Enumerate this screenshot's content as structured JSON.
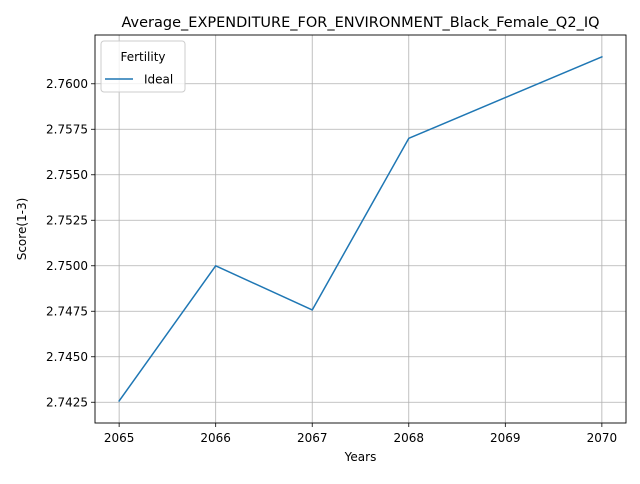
{
  "chart_data": {
    "type": "line",
    "title": "Average_EXPENDITURE_FOR_ENVIRONMENT_Black_Female_Q2_IQ",
    "xlabel": "Years",
    "ylabel": "Score(1-3)",
    "x": [
      2065,
      2066,
      2067,
      2068,
      2069,
      2070
    ],
    "series": [
      {
        "name": "Ideal",
        "color": "#1f77b4",
        "values": [
          2.74257,
          2.75,
          2.74757,
          2.757,
          2.75924,
          2.76148
        ]
      }
    ],
    "xlim": [
      2064.75,
      2070.25
    ],
    "ylim": [
      2.74136,
      2.76268
    ],
    "xticks": [
      "2065",
      "2066",
      "2067",
      "2068",
      "2069",
      "2070"
    ],
    "yticks": [
      "2.7425",
      "2.7450",
      "2.7475",
      "2.7500",
      "2.7525",
      "2.7550",
      "2.7575",
      "2.7600"
    ],
    "grid": true,
    "legend": {
      "title": "Fertility",
      "placement": "top-left"
    }
  }
}
